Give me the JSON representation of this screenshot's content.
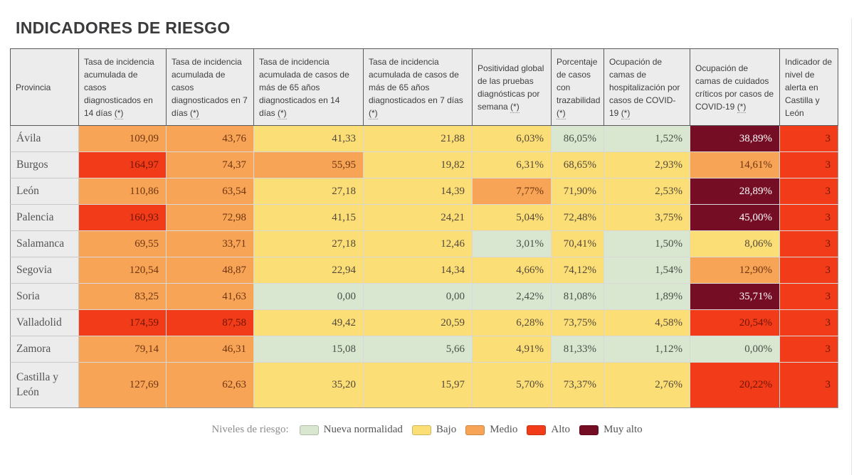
{
  "page_title": "INDICADORES DE RIESGO",
  "footnote_marker": "(*)",
  "colors": {
    "nueva": "#d9e6d0",
    "bajo": "#fbde76",
    "medio": "#f8a456",
    "alto": "#f23c19",
    "muy_alto": "#750d24",
    "header_bg": "#ececec",
    "title_text": "#3b3b3d"
  },
  "legend": {
    "title": "Niveles de riesgo:",
    "items": [
      {
        "label": "Nueva normalidad",
        "level": "nueva"
      },
      {
        "label": "Bajo",
        "level": "bajo"
      },
      {
        "label": "Medio",
        "level": "medio"
      },
      {
        "label": "Alto",
        "level": "alto"
      },
      {
        "label": "Muy alto",
        "level": "muy_alto"
      }
    ]
  },
  "chart_data": {
    "type": "table",
    "title": "INDICADORES DE RIESGO",
    "columns": [
      {
        "label": "Provincia",
        "note": false
      },
      {
        "label": "Tasa de incidencia acumulada de casos diagnosticados en 14 días",
        "note": true
      },
      {
        "label": "Tasa de incidencia acumulada de casos diagnosticados en 7 días",
        "note": true
      },
      {
        "label": "Tasa de incidencia acumulada de casos de más de 65 años diagnosticados en 14 días",
        "note": true
      },
      {
        "label": "Tasa de incidencia acumulada de casos de más de 65 años diagnosticados en 7 días",
        "note": true
      },
      {
        "label": "Positividad global de las pruebas diagnósticas por semana",
        "note": true
      },
      {
        "label": "Porcentaje de casos con trazabilidad",
        "note": true
      },
      {
        "label": "Ocupación de camas de hospitalización por casos de COVID-19",
        "note": true
      },
      {
        "label": "Ocupación de camas de cuidados críticos por casos de COVID-19",
        "note": true
      },
      {
        "label": "Indicador de nivel de alerta en Castilla y León",
        "note": false
      }
    ],
    "rows": [
      {
        "province": "Ávila",
        "cells": [
          {
            "value": "109,09",
            "level": "medio"
          },
          {
            "value": "43,76",
            "level": "medio"
          },
          {
            "value": "41,33",
            "level": "bajo"
          },
          {
            "value": "21,88",
            "level": "bajo"
          },
          {
            "value": "6,03%",
            "level": "bajo"
          },
          {
            "value": "86,05%",
            "level": "nueva"
          },
          {
            "value": "1,52%",
            "level": "nueva"
          },
          {
            "value": "38,89%",
            "level": "muy_alto"
          },
          {
            "value": "3",
            "level": "alto"
          }
        ]
      },
      {
        "province": "Burgos",
        "cells": [
          {
            "value": "164,97",
            "level": "alto"
          },
          {
            "value": "74,37",
            "level": "medio"
          },
          {
            "value": "55,95",
            "level": "medio"
          },
          {
            "value": "19,82",
            "level": "bajo"
          },
          {
            "value": "6,31%",
            "level": "bajo"
          },
          {
            "value": "68,65%",
            "level": "bajo"
          },
          {
            "value": "2,93%",
            "level": "bajo"
          },
          {
            "value": "14,61%",
            "level": "medio"
          },
          {
            "value": "3",
            "level": "alto"
          }
        ]
      },
      {
        "province": "León",
        "cells": [
          {
            "value": "110,86",
            "level": "medio"
          },
          {
            "value": "63,54",
            "level": "medio"
          },
          {
            "value": "27,18",
            "level": "bajo"
          },
          {
            "value": "14,39",
            "level": "bajo"
          },
          {
            "value": "7,77%",
            "level": "medio"
          },
          {
            "value": "71,90%",
            "level": "bajo"
          },
          {
            "value": "2,53%",
            "level": "bajo"
          },
          {
            "value": "28,89%",
            "level": "muy_alto"
          },
          {
            "value": "3",
            "level": "alto"
          }
        ]
      },
      {
        "province": "Palencia",
        "cells": [
          {
            "value": "160,93",
            "level": "alto"
          },
          {
            "value": "72,98",
            "level": "medio"
          },
          {
            "value": "41,15",
            "level": "bajo"
          },
          {
            "value": "24,21",
            "level": "bajo"
          },
          {
            "value": "5,04%",
            "level": "bajo"
          },
          {
            "value": "72,48%",
            "level": "bajo"
          },
          {
            "value": "3,75%",
            "level": "bajo"
          },
          {
            "value": "45,00%",
            "level": "muy_alto"
          },
          {
            "value": "3",
            "level": "alto"
          }
        ]
      },
      {
        "province": "Salamanca",
        "cells": [
          {
            "value": "69,55",
            "level": "medio"
          },
          {
            "value": "33,71",
            "level": "medio"
          },
          {
            "value": "27,18",
            "level": "bajo"
          },
          {
            "value": "12,46",
            "level": "bajo"
          },
          {
            "value": "3,01%",
            "level": "nueva"
          },
          {
            "value": "70,41%",
            "level": "bajo"
          },
          {
            "value": "1,50%",
            "level": "nueva"
          },
          {
            "value": "8,06%",
            "level": "bajo"
          },
          {
            "value": "3",
            "level": "alto"
          }
        ]
      },
      {
        "province": "Segovia",
        "cells": [
          {
            "value": "120,54",
            "level": "medio"
          },
          {
            "value": "48,87",
            "level": "medio"
          },
          {
            "value": "22,94",
            "level": "bajo"
          },
          {
            "value": "14,34",
            "level": "bajo"
          },
          {
            "value": "4,66%",
            "level": "bajo"
          },
          {
            "value": "74,12%",
            "level": "bajo"
          },
          {
            "value": "1,54%",
            "level": "nueva"
          },
          {
            "value": "12,90%",
            "level": "medio"
          },
          {
            "value": "3",
            "level": "alto"
          }
        ]
      },
      {
        "province": "Soria",
        "cells": [
          {
            "value": "83,25",
            "level": "medio"
          },
          {
            "value": "41,63",
            "level": "medio"
          },
          {
            "value": "0,00",
            "level": "nueva"
          },
          {
            "value": "0,00",
            "level": "nueva"
          },
          {
            "value": "2,42%",
            "level": "nueva"
          },
          {
            "value": "81,08%",
            "level": "nueva"
          },
          {
            "value": "1,89%",
            "level": "nueva"
          },
          {
            "value": "35,71%",
            "level": "muy_alto"
          },
          {
            "value": "3",
            "level": "alto"
          }
        ]
      },
      {
        "province": "Valladolid",
        "cells": [
          {
            "value": "174,59",
            "level": "alto"
          },
          {
            "value": "87,58",
            "level": "alto"
          },
          {
            "value": "49,42",
            "level": "bajo"
          },
          {
            "value": "20,59",
            "level": "bajo"
          },
          {
            "value": "6,28%",
            "level": "bajo"
          },
          {
            "value": "73,75%",
            "level": "bajo"
          },
          {
            "value": "4,58%",
            "level": "bajo"
          },
          {
            "value": "20,54%",
            "level": "alto"
          },
          {
            "value": "3",
            "level": "alto"
          }
        ]
      },
      {
        "province": "Zamora",
        "cells": [
          {
            "value": "79,14",
            "level": "medio"
          },
          {
            "value": "46,31",
            "level": "medio"
          },
          {
            "value": "15,08",
            "level": "nueva"
          },
          {
            "value": "5,66",
            "level": "nueva"
          },
          {
            "value": "4,91%",
            "level": "bajo"
          },
          {
            "value": "81,33%",
            "level": "nueva"
          },
          {
            "value": "1,12%",
            "level": "nueva"
          },
          {
            "value": "0,00%",
            "level": "nueva"
          },
          {
            "value": "3",
            "level": "alto"
          }
        ]
      },
      {
        "province": "Castilla y León",
        "cells": [
          {
            "value": "127,69",
            "level": "medio"
          },
          {
            "value": "62,63",
            "level": "medio"
          },
          {
            "value": "35,20",
            "level": "bajo"
          },
          {
            "value": "15,97",
            "level": "bajo"
          },
          {
            "value": "5,70%",
            "level": "bajo"
          },
          {
            "value": "73,37%",
            "level": "bajo"
          },
          {
            "value": "2,76%",
            "level": "bajo"
          },
          {
            "value": "20,22%",
            "level": "alto"
          },
          {
            "value": "3",
            "level": "alto"
          }
        ]
      }
    ],
    "legend_position": "bottom-center",
    "risk_level_labels": [
      "Nueva normalidad",
      "Bajo",
      "Medio",
      "Alto",
      "Muy alto"
    ]
  }
}
